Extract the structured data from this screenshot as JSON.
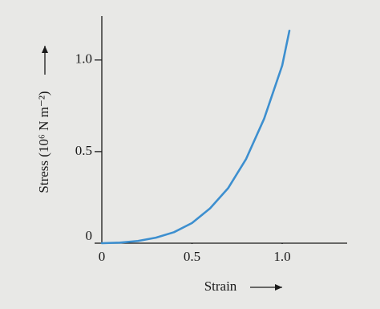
{
  "chart_data": {
    "type": "line",
    "x_label": "Strain",
    "y_label": "Stress (10⁶ N m⁻²)",
    "x": [
      0,
      0.1,
      0.2,
      0.3,
      0.4,
      0.5,
      0.6,
      0.7,
      0.8,
      0.9,
      1.0,
      1.04
    ],
    "series": [
      {
        "name": "Stress",
        "color": "#3d8fcf",
        "values": [
          0,
          0.003,
          0.012,
          0.03,
          0.06,
          0.11,
          0.19,
          0.3,
          0.46,
          0.68,
          0.97,
          1.16
        ]
      }
    ],
    "xlim": [
      0,
      1.36
    ],
    "ylim": [
      0,
      1.24
    ],
    "xticks": [
      0,
      0.5,
      {
        "value": 1,
        "label": "1.0"
      }
    ],
    "yticks": [
      0,
      0.5,
      {
        "value": 1,
        "label": "1.0"
      }
    ]
  }
}
